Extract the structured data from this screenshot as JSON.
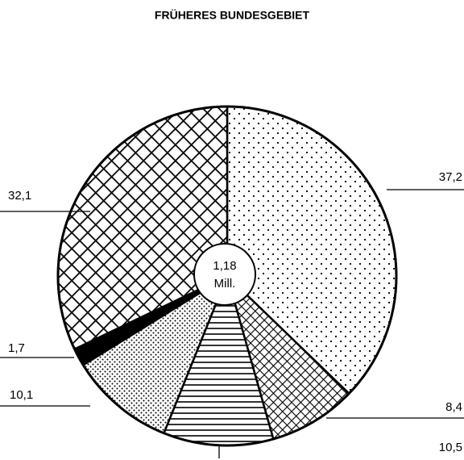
{
  "chart_data": {
    "type": "pie",
    "title": "FRÜHERES BUNDESGEBIET",
    "categories": [
      null,
      null,
      null,
      null,
      null,
      null
    ],
    "values": [
      37.2,
      8.4,
      10.5,
      10.1,
      1.7,
      32.1
    ],
    "value_labels": [
      "37,2",
      "8,4",
      "10,5",
      "10,1",
      "1,7",
      "32,1"
    ],
    "center_label": [
      "1,18",
      "Mill."
    ]
  }
}
